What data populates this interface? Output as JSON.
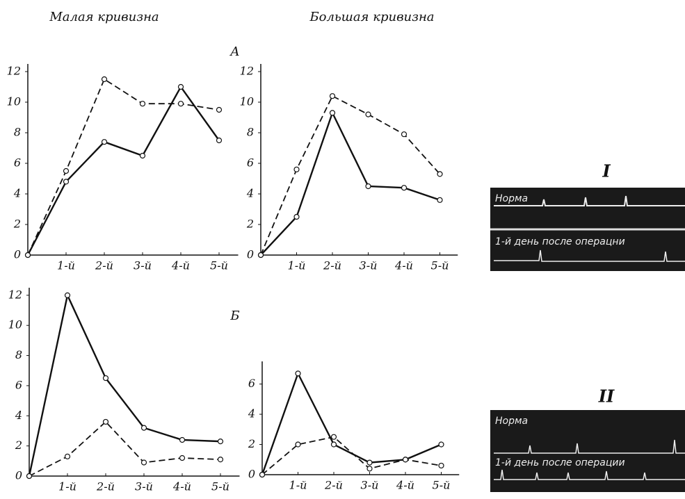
{
  "labels": {
    "left_header": "Малая кривизна",
    "right_header": "Большая кривизна",
    "section_a": "А",
    "section_b": "Б",
    "ecg_1": {
      "label": "I",
      "top": "Норма",
      "bottom": "1-й день после операцни"
    },
    "ecg_2": {
      "label": "II",
      "top": "Норма",
      "bottom": "1-й день после операции"
    }
  },
  "chart_data": [
    {
      "type": "line",
      "categories": [
        null,
        "1-й",
        "2-й",
        "3-й",
        "4-й",
        "5-й"
      ],
      "ylim": [
        0,
        12.5
      ],
      "yticks": [
        0,
        2,
        4,
        6,
        8,
        10,
        12
      ],
      "series": [
        {
          "color": "#111",
          "dashed": false,
          "values": [
            0,
            4.8,
            7.4,
            6.5,
            11,
            7.5
          ]
        },
        {
          "color": "#111",
          "dashed": true,
          "values": [
            0,
            5.5,
            11.5,
            9.9,
            9.9,
            9.5
          ]
        }
      ]
    },
    {
      "type": "line",
      "categories": [
        null,
        "1-й",
        "2-й",
        "3-й",
        "4-й",
        "5-й"
      ],
      "ylim": [
        0,
        12.5
      ],
      "yticks": [
        0,
        2,
        4,
        6,
        8,
        10,
        12
      ],
      "series": [
        {
          "color": "#111",
          "dashed": false,
          "values": [
            0,
            2.5,
            9.3,
            4.5,
            4.4,
            3.6
          ]
        },
        {
          "color": "#111",
          "dashed": true,
          "values": [
            0,
            5.6,
            10.4,
            9.2,
            7.9,
            5.3
          ]
        }
      ]
    },
    {
      "type": "line",
      "categories": [
        null,
        "1-й",
        "2-й",
        "3-й",
        "4-й",
        "5-й"
      ],
      "ylim": [
        0,
        12.5
      ],
      "yticks": [
        0,
        2,
        4,
        6,
        8,
        10,
        12
      ],
      "series": [
        {
          "color": "#111",
          "dashed": false,
          "values": [
            0,
            12,
            6.5,
            3.2,
            2.4,
            2.3
          ]
        },
        {
          "color": "#111",
          "dashed": true,
          "values": [
            0,
            1.3,
            3.6,
            0.9,
            1.2,
            1.1
          ]
        }
      ]
    },
    {
      "type": "line",
      "categories": [
        null,
        "1-й",
        "2-й",
        "3-й",
        "4-й",
        "5-й"
      ],
      "ylim": [
        0,
        7.5
      ],
      "yticks": [
        0,
        2,
        4,
        6
      ],
      "series": [
        {
          "color": "#111",
          "dashed": false,
          "values": [
            0,
            6.7,
            2,
            0.8,
            1,
            2
          ]
        },
        {
          "color": "#111",
          "dashed": true,
          "values": [
            0,
            2,
            2.5,
            0.4,
            1,
            0.6
          ]
        }
      ]
    }
  ]
}
